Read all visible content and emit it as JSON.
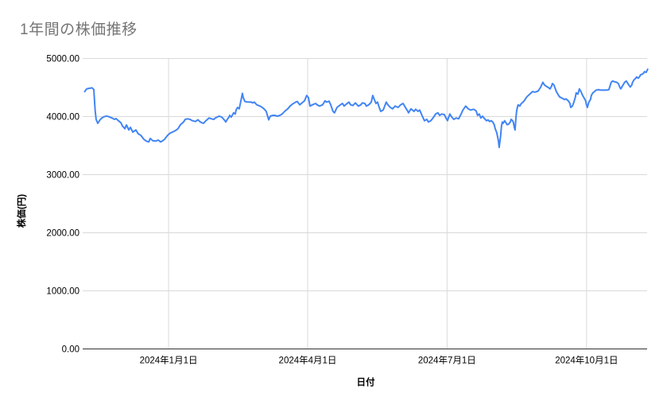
{
  "chart": {
    "title": "1年間の株価推移"
  },
  "colors": {
    "line": "#4285f4",
    "gridline": "#d9d9d9",
    "axis_line": "#333333",
    "title_text": "#757575",
    "label_text": "#000000",
    "background": "#ffffff"
  },
  "chart_data": {
    "type": "line",
    "title": "1年間の株価推移",
    "xlabel": "日付",
    "ylabel": "株価(円)",
    "ylim": [
      0,
      5000
    ],
    "grid": true,
    "legend": "none",
    "series_name": "株価",
    "line_color": "#4285f4",
    "y_ticks": [
      {
        "label": "0.00",
        "value": 0
      },
      {
        "label": "1000.00",
        "value": 1000
      },
      {
        "label": "2000.00",
        "value": 2000
      },
      {
        "label": "3000.00",
        "value": 3000
      },
      {
        "label": "4000.00",
        "value": 4000
      },
      {
        "label": "5000.00",
        "value": 5000
      }
    ],
    "x_ticks": [
      {
        "label": "2024年1月1日",
        "day": 54.9
      },
      {
        "label": "2024年4月1日",
        "day": 145.9
      },
      {
        "label": "2024年7月1日",
        "day": 237.1
      },
      {
        "label": "2024年10月1日",
        "day": 328.4
      }
    ],
    "points": [
      [
        0,
        4430
      ],
      [
        1.3,
        4477
      ],
      [
        2.9,
        4486
      ],
      [
        4.9,
        4495
      ],
      [
        6,
        4465
      ],
      [
        6.8,
        4120
      ],
      [
        7.5,
        3952
      ],
      [
        8.6,
        3884
      ],
      [
        10.1,
        3945
      ],
      [
        11.2,
        3975
      ],
      [
        12.7,
        3997
      ],
      [
        14.3,
        4010
      ],
      [
        15.9,
        3997
      ],
      [
        17.9,
        3975
      ],
      [
        19.5,
        3952
      ],
      [
        20.5,
        3966
      ],
      [
        22.1,
        3929
      ],
      [
        23.7,
        3893
      ],
      [
        24.7,
        3838
      ],
      [
        26.3,
        3792
      ],
      [
        27.3,
        3856
      ],
      [
        28.9,
        3770
      ],
      [
        29.9,
        3815
      ],
      [
        31.5,
        3733
      ],
      [
        33.5,
        3770
      ],
      [
        35.1,
        3701
      ],
      [
        36.7,
        3678
      ],
      [
        38.7,
        3610
      ],
      [
        40.3,
        3578
      ],
      [
        41.9,
        3564
      ],
      [
        42.9,
        3623
      ],
      [
        44.5,
        3586
      ],
      [
        46.5,
        3578
      ],
      [
        48.1,
        3596
      ],
      [
        49.7,
        3564
      ],
      [
        50.7,
        3578
      ],
      [
        52.3,
        3610
      ],
      [
        54.3,
        3678
      ],
      [
        55.9,
        3715
      ],
      [
        58.5,
        3747
      ],
      [
        60.1,
        3770
      ],
      [
        61.1,
        3793
      ],
      [
        62.7,
        3860
      ],
      [
        64.7,
        3907
      ],
      [
        65.8,
        3952
      ],
      [
        67.3,
        3962
      ],
      [
        68.9,
        3952
      ],
      [
        70.5,
        3929
      ],
      [
        72.5,
        3915
      ],
      [
        74.1,
        3945
      ],
      [
        75.7,
        3907
      ],
      [
        77.7,
        3884
      ],
      [
        78.8,
        3915
      ],
      [
        80.3,
        3952
      ],
      [
        81.4,
        3975
      ],
      [
        82.9,
        3962
      ],
      [
        84.5,
        3952
      ],
      [
        85.5,
        3975
      ],
      [
        87.1,
        3997
      ],
      [
        88.1,
        4007
      ],
      [
        89.7,
        3990
      ],
      [
        90.7,
        3962
      ],
      [
        91.8,
        3929
      ],
      [
        92.3,
        3907
      ],
      [
        93.3,
        3952
      ],
      [
        94.4,
        3990
      ],
      [
        94.9,
        4021
      ],
      [
        95.9,
        3990
      ],
      [
        97,
        4044
      ],
      [
        97.5,
        4066
      ],
      [
        98.5,
        4044
      ],
      [
        99.1,
        4112
      ],
      [
        100.1,
        4158
      ],
      [
        101.1,
        4134
      ],
      [
        101.7,
        4203
      ],
      [
        102.7,
        4330
      ],
      [
        103.2,
        4400
      ],
      [
        103.7,
        4330
      ],
      [
        104.8,
        4260
      ],
      [
        106.9,
        4249
      ],
      [
        108.9,
        4249
      ],
      [
        110,
        4236
      ],
      [
        111,
        4249
      ],
      [
        112.6,
        4203
      ],
      [
        114.7,
        4181
      ],
      [
        116.2,
        4158
      ],
      [
        117.3,
        4134
      ],
      [
        118.8,
        4089
      ],
      [
        119.9,
        3990
      ],
      [
        120.4,
        3944
      ],
      [
        121.4,
        4007
      ],
      [
        123,
        4021
      ],
      [
        124.5,
        4021
      ],
      [
        126.1,
        4007
      ],
      [
        127.7,
        4021
      ],
      [
        129.2,
        4044
      ],
      [
        130.8,
        4089
      ],
      [
        132.9,
        4134
      ],
      [
        134.4,
        4181
      ],
      [
        136,
        4216
      ],
      [
        138.1,
        4249
      ],
      [
        139.1,
        4260
      ],
      [
        140.7,
        4203
      ],
      [
        142.2,
        4236
      ],
      [
        143.8,
        4271
      ],
      [
        145.3,
        4363
      ],
      [
        146.4,
        4326
      ],
      [
        147.4,
        4181
      ],
      [
        149,
        4203
      ],
      [
        151.1,
        4226
      ],
      [
        152.1,
        4203
      ],
      [
        153.7,
        4181
      ],
      [
        155.7,
        4203
      ],
      [
        157.3,
        4271
      ],
      [
        158.3,
        4249
      ],
      [
        159.9,
        4264
      ],
      [
        161,
        4203
      ],
      [
        162.5,
        4089
      ],
      [
        163.5,
        4066
      ],
      [
        165.1,
        4158
      ],
      [
        166.7,
        4190
      ],
      [
        168.7,
        4226
      ],
      [
        169.8,
        4181
      ],
      [
        171.3,
        4216
      ],
      [
        172.9,
        4249
      ],
      [
        174,
        4203
      ],
      [
        175.5,
        4190
      ],
      [
        177.1,
        4236
      ],
      [
        179.1,
        4181
      ],
      [
        180.7,
        4203
      ],
      [
        181.7,
        4236
      ],
      [
        183.3,
        4226
      ],
      [
        184.3,
        4181
      ],
      [
        185.9,
        4203
      ],
      [
        187.5,
        4249
      ],
      [
        188.5,
        4363
      ],
      [
        189.5,
        4295
      ],
      [
        190.6,
        4226
      ],
      [
        191.6,
        4249
      ],
      [
        192.7,
        4158
      ],
      [
        193.7,
        4089
      ],
      [
        195.3,
        4112
      ],
      [
        196.3,
        4181
      ],
      [
        197.3,
        4249
      ],
      [
        198.4,
        4203
      ],
      [
        200,
        4158
      ],
      [
        201.5,
        4134
      ],
      [
        203.1,
        4181
      ],
      [
        205.1,
        4158
      ],
      [
        206.7,
        4203
      ],
      [
        208.3,
        4226
      ],
      [
        209.3,
        4181
      ],
      [
        210.9,
        4112
      ],
      [
        211.9,
        4066
      ],
      [
        213.5,
        4134
      ],
      [
        215.5,
        4089
      ],
      [
        216.6,
        4126
      ],
      [
        218.1,
        4089
      ],
      [
        219.2,
        4112
      ],
      [
        220.7,
        4021
      ],
      [
        222.3,
        3929
      ],
      [
        223.9,
        3952
      ],
      [
        224.9,
        3907
      ],
      [
        226.5,
        3929
      ],
      [
        228.5,
        3997
      ],
      [
        229.6,
        4044
      ],
      [
        231.1,
        4066
      ],
      [
        232.2,
        4021
      ],
      [
        233.7,
        4044
      ],
      [
        235.3,
        4034
      ],
      [
        236.9,
        3952
      ],
      [
        237.4,
        3930
      ],
      [
        238.9,
        4044
      ],
      [
        240,
        3997
      ],
      [
        241.5,
        3952
      ],
      [
        243.1,
        3975
      ],
      [
        244.7,
        3962
      ],
      [
        246.7,
        4066
      ],
      [
        247.2,
        4098
      ],
      [
        248.3,
        4144
      ],
      [
        249.3,
        4181
      ],
      [
        250.9,
        4134
      ],
      [
        252.5,
        4112
      ],
      [
        254.5,
        4126
      ],
      [
        256.1,
        4098
      ],
      [
        257.1,
        4021
      ],
      [
        258.2,
        4044
      ],
      [
        259.2,
        3975
      ],
      [
        260.3,
        4007
      ],
      [
        261.3,
        3975
      ],
      [
        262.9,
        3929
      ],
      [
        263.9,
        3944
      ],
      [
        264.9,
        3915
      ],
      [
        266,
        3929
      ],
      [
        267,
        3907
      ],
      [
        268,
        3860
      ],
      [
        268.6,
        3793
      ],
      [
        269.6,
        3724
      ],
      [
        270.7,
        3587
      ],
      [
        271.2,
        3470
      ],
      [
        272.2,
        3678
      ],
      [
        272.7,
        3838
      ],
      [
        273.3,
        3907
      ],
      [
        273.8,
        3884
      ],
      [
        274.8,
        3929
      ],
      [
        275.9,
        3884
      ],
      [
        276.4,
        3860
      ],
      [
        277.4,
        3870
      ],
      [
        278.5,
        3907
      ],
      [
        279,
        3952
      ],
      [
        280,
        3929
      ],
      [
        280.5,
        3897
      ],
      [
        281.1,
        3815
      ],
      [
        281.6,
        3770
      ],
      [
        282.1,
        3952
      ],
      [
        282.6,
        4089
      ],
      [
        283.1,
        4158
      ],
      [
        283.6,
        4203
      ],
      [
        284.7,
        4181
      ],
      [
        285.7,
        4226
      ],
      [
        286.8,
        4249
      ],
      [
        287.8,
        4280
      ],
      [
        289.3,
        4340
      ],
      [
        291.4,
        4390
      ],
      [
        293,
        4430
      ],
      [
        294.6,
        4420
      ],
      [
        296.7,
        4440
      ],
      [
        298.2,
        4500
      ],
      [
        299.8,
        4590
      ],
      [
        300.8,
        4545
      ],
      [
        301.9,
        4523
      ],
      [
        303.4,
        4500
      ],
      [
        304.5,
        4477
      ],
      [
        305.5,
        4523
      ],
      [
        306,
        4568
      ],
      [
        307,
        4545
      ],
      [
        308.6,
        4432
      ],
      [
        309.6,
        4386
      ],
      [
        310.7,
        4340
      ],
      [
        312.3,
        4318
      ],
      [
        313.8,
        4295
      ],
      [
        314.9,
        4304
      ],
      [
        316.4,
        4271
      ],
      [
        317.5,
        4226
      ],
      [
        318,
        4158
      ],
      [
        319.1,
        4181
      ],
      [
        320.1,
        4249
      ],
      [
        321.1,
        4340
      ],
      [
        321.6,
        4408
      ],
      [
        322.7,
        4386
      ],
      [
        323.7,
        4477
      ],
      [
        324.7,
        4432
      ],
      [
        325.8,
        4363
      ],
      [
        326.8,
        4318
      ],
      [
        327.8,
        4271
      ],
      [
        328.3,
        4203
      ],
      [
        328.9,
        4158
      ],
      [
        329.9,
        4249
      ],
      [
        331,
        4295
      ],
      [
        331.5,
        4363
      ],
      [
        332.5,
        4408
      ],
      [
        333.6,
        4432
      ],
      [
        334.6,
        4455
      ],
      [
        336.2,
        4464
      ],
      [
        337.7,
        4455
      ],
      [
        339.8,
        4455
      ],
      [
        341.4,
        4455
      ],
      [
        343,
        4464
      ],
      [
        344,
        4545
      ],
      [
        344.5,
        4591
      ],
      [
        345.5,
        4613
      ],
      [
        346.6,
        4600
      ],
      [
        348.1,
        4591
      ],
      [
        349.2,
        4568
      ],
      [
        350.2,
        4500
      ],
      [
        350.8,
        4477
      ],
      [
        351.8,
        4523
      ],
      [
        352.8,
        4568
      ],
      [
        353.3,
        4591
      ],
      [
        354.4,
        4613
      ],
      [
        354.9,
        4591
      ],
      [
        356,
        4545
      ],
      [
        357,
        4509
      ],
      [
        358,
        4545
      ],
      [
        358.5,
        4591
      ],
      [
        359.6,
        4637
      ],
      [
        360.6,
        4660
      ],
      [
        361.1,
        4682
      ],
      [
        362.2,
        4660
      ],
      [
        363.2,
        4692
      ],
      [
        363.7,
        4719
      ],
      [
        364.8,
        4729
      ],
      [
        365.8,
        4751
      ],
      [
        366.3,
        4774
      ],
      [
        367.4,
        4760
      ],
      [
        368.4,
        4815
      ]
    ]
  }
}
